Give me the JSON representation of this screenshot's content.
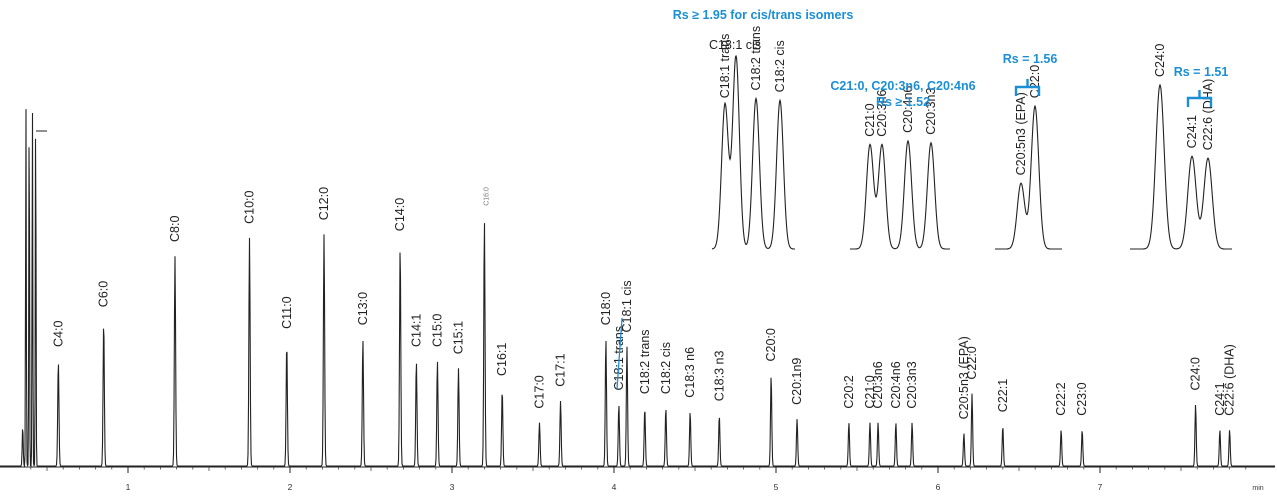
{
  "chart_data": {
    "type": "line",
    "xunit": "min",
    "x_ticks": [
      "1",
      "2",
      "3",
      "4",
      "5",
      "6",
      "7"
    ],
    "colors": {
      "trace": "#222222",
      "annotation": "#1a8fd6"
    },
    "peaks": [
      {
        "label": "C4:0",
        "t": 0.57,
        "h": 0.29
      },
      {
        "label": "C6:0",
        "t": 0.85,
        "h": 0.4
      },
      {
        "label": "C8:0",
        "t": 1.29,
        "h": 0.58
      },
      {
        "label": "C10:0",
        "t": 1.75,
        "h": 0.63
      },
      {
        "label": "C11:0",
        "t": 1.98,
        "h": 0.34
      },
      {
        "label": "C12:0",
        "t": 2.21,
        "h": 0.64
      },
      {
        "label": "C13:0",
        "t": 2.45,
        "h": 0.35
      },
      {
        "label": "C14:0",
        "t": 2.68,
        "h": 0.61
      },
      {
        "label": "C14:1",
        "t": 2.78,
        "h": 0.29
      },
      {
        "label": "C15:0",
        "t": 2.91,
        "h": 0.29
      },
      {
        "label": "C15:1",
        "t": 3.04,
        "h": 0.27
      },
      {
        "label": "C16:0",
        "t": 3.2,
        "h": 0.68
      },
      {
        "label": "C16:1",
        "t": 3.31,
        "h": 0.21
      },
      {
        "label": "C17:0",
        "t": 3.54,
        "h": 0.12
      },
      {
        "label": "C17:1",
        "t": 3.67,
        "h": 0.18
      },
      {
        "label": "C18:0",
        "t": 3.95,
        "h": 0.35
      },
      {
        "label": "C18:1 trans",
        "t": 4.03,
        "h": 0.17
      },
      {
        "label": "C18:1 cis",
        "t": 4.08,
        "h": 0.33
      },
      {
        "label": "C18:2 trans",
        "t": 4.19,
        "h": 0.16
      },
      {
        "label": "C18:2 cis",
        "t": 4.32,
        "h": 0.16
      },
      {
        "label": "C18:3 n6",
        "t": 4.47,
        "h": 0.15
      },
      {
        "label": "C18:3 n3",
        "t": 4.65,
        "h": 0.14
      },
      {
        "label": "C20:0",
        "t": 4.97,
        "h": 0.25
      },
      {
        "label": "C20:1n9",
        "t": 5.13,
        "h": 0.13
      },
      {
        "label": "C20:2",
        "t": 5.45,
        "h": 0.12
      },
      {
        "label": "C21:0",
        "t": 5.58,
        "h": 0.12
      },
      {
        "label": "C20:3n6",
        "t": 5.63,
        "h": 0.12
      },
      {
        "label": "C20:4n6",
        "t": 5.74,
        "h": 0.12
      },
      {
        "label": "C20:3n3",
        "t": 5.84,
        "h": 0.12
      },
      {
        "label": "C20:5n3 (EPA)",
        "t": 6.16,
        "h": 0.09
      },
      {
        "label": "C22:0",
        "t": 6.21,
        "h": 0.2
      },
      {
        "label": "C22:1",
        "t": 6.4,
        "h": 0.11
      },
      {
        "label": "C22:2",
        "t": 6.76,
        "h": 0.1
      },
      {
        "label": "C23:0",
        "t": 6.89,
        "h": 0.1
      },
      {
        "label": "C24:0",
        "t": 7.59,
        "h": 0.17
      },
      {
        "label": "C24:1",
        "t": 7.74,
        "h": 0.1
      },
      {
        "label": "C22:6 (DHA)",
        "t": 7.8,
        "h": 0.1
      }
    ],
    "insets": [
      {
        "peaks": [
          {
            "label": "C18:1 trans",
            "h": 0.75
          },
          {
            "label": "C18:1 cis",
            "h": 1.0
          },
          {
            "label": "C18:2 trans",
            "h": 0.78
          },
          {
            "label": "C18:2 cis",
            "h": 0.77
          }
        ],
        "note": "Rs ≥ 1.95 for cis/trans isomers"
      },
      {
        "peaks": [
          {
            "label": "C21:0",
            "h": 0.54
          },
          {
            "label": "C20:3n6",
            "h": 0.54
          },
          {
            "label": "C20:4n6",
            "h": 0.56
          },
          {
            "label": "C20:3n3",
            "h": 0.55
          }
        ],
        "note_line1": "C21:0, C20:3n6, C20:4n6",
        "note_line2": "Rs ≥ 1.52"
      },
      {
        "peaks": [
          {
            "label": "C20:5n3 (EPA)",
            "h": 0.34
          },
          {
            "label": "C22:0",
            "h": 0.74
          }
        ],
        "note": "Rs = 1.56"
      },
      {
        "peaks": [
          {
            "label": "C24:0",
            "h": 0.85
          },
          {
            "label": "C24:1",
            "h": 0.48
          },
          {
            "label": "C22:6 (DHA)",
            "h": 0.47
          }
        ],
        "note": "Rs = 1.51"
      }
    ]
  }
}
